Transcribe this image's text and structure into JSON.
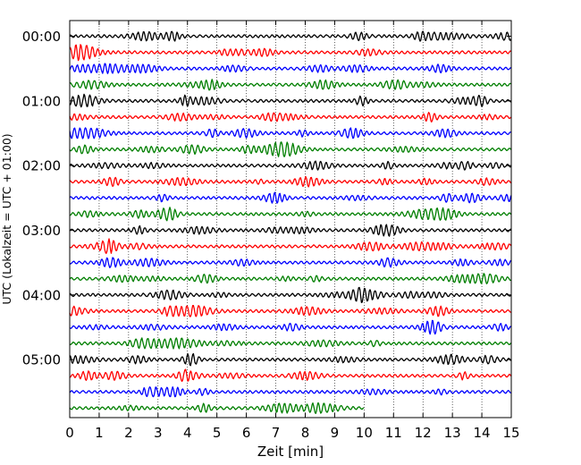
{
  "chart_data": {
    "type": "line",
    "title": "",
    "xlabel": "Zeit  [min]",
    "ylabel": "UTC (Lokalzeit = UTC + 01:00)",
    "xlim": [
      0,
      15
    ],
    "x_ticks": [
      0,
      1,
      2,
      3,
      4,
      5,
      6,
      7,
      8,
      9,
      10,
      11,
      12,
      13,
      14,
      15
    ],
    "x_tick_labels": [
      "0",
      "1",
      "2",
      "3",
      "4",
      "5",
      "6",
      "7",
      "8",
      "9",
      "10",
      "11",
      "12",
      "13",
      "14",
      "15"
    ],
    "y_tick_labels": [
      "00:00",
      "01:00",
      "02:00",
      "03:00",
      "04:00",
      "05:00"
    ],
    "grid": "vertical dotted",
    "trace_interval_min": 15,
    "colors": [
      "#000000",
      "#ff0000",
      "#0000ff",
      "#007f00"
    ],
    "series": [
      {
        "start": "00:00",
        "color": "#000000",
        "end_min": 15
      },
      {
        "start": "00:15",
        "color": "#ff0000",
        "end_min": 15
      },
      {
        "start": "00:30",
        "color": "#0000ff",
        "end_min": 15
      },
      {
        "start": "00:45",
        "color": "#007f00",
        "end_min": 15
      },
      {
        "start": "01:00",
        "color": "#000000",
        "end_min": 15
      },
      {
        "start": "01:15",
        "color": "#ff0000",
        "end_min": 15
      },
      {
        "start": "01:30",
        "color": "#0000ff",
        "end_min": 15
      },
      {
        "start": "01:45",
        "color": "#007f00",
        "end_min": 15
      },
      {
        "start": "02:00",
        "color": "#000000",
        "end_min": 15
      },
      {
        "start": "02:15",
        "color": "#ff0000",
        "end_min": 15
      },
      {
        "start": "02:30",
        "color": "#0000ff",
        "end_min": 15
      },
      {
        "start": "02:45",
        "color": "#007f00",
        "end_min": 15
      },
      {
        "start": "03:00",
        "color": "#000000",
        "end_min": 15
      },
      {
        "start": "03:15",
        "color": "#ff0000",
        "end_min": 15
      },
      {
        "start": "03:30",
        "color": "#0000ff",
        "end_min": 15
      },
      {
        "start": "03:45",
        "color": "#007f00",
        "end_min": 15
      },
      {
        "start": "04:00",
        "color": "#000000",
        "end_min": 15
      },
      {
        "start": "04:15",
        "color": "#ff0000",
        "end_min": 15
      },
      {
        "start": "04:30",
        "color": "#0000ff",
        "end_min": 15
      },
      {
        "start": "04:45",
        "color": "#007f00",
        "end_min": 15
      },
      {
        "start": "05:00",
        "color": "#000000",
        "end_min": 15
      },
      {
        "start": "05:15",
        "color": "#ff0000",
        "end_min": 15
      },
      {
        "start": "05:30",
        "color": "#0000ff",
        "end_min": 15
      },
      {
        "start": "05:45",
        "color": "#007f00",
        "end_min": 10
      }
    ]
  }
}
